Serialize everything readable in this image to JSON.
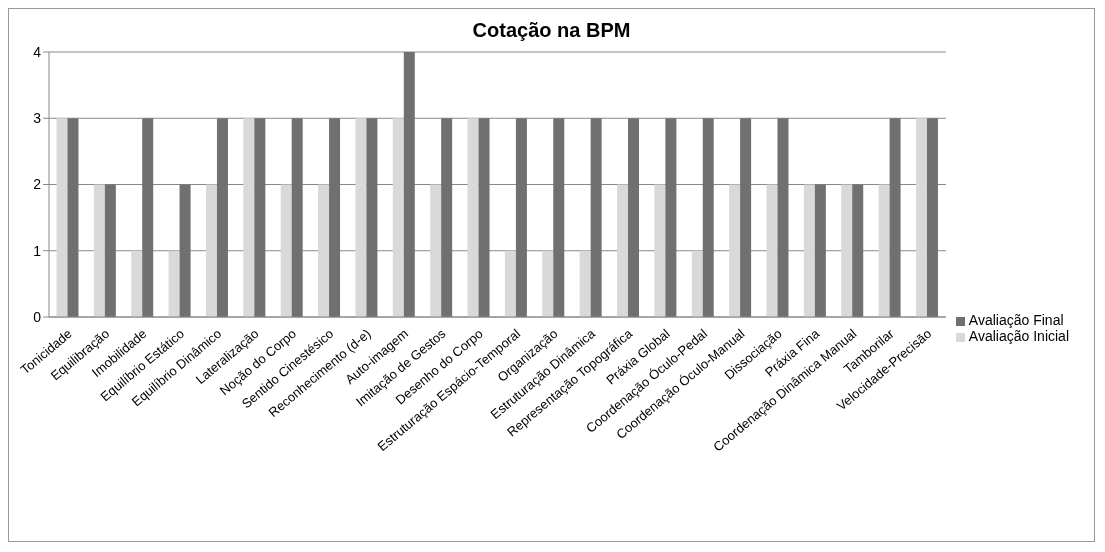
{
  "chart_data": {
    "type": "bar",
    "title": "Cotação na BPM",
    "categories": [
      "Tonicidade",
      "Equilibração",
      "Imobilidade",
      "Equilíbrio Estático",
      "Equilíbrio Dinâmico",
      "Lateralização",
      "Noção do Corpo",
      "Sentido Cinestésico",
      "Reconhecimento (d-e)",
      "Auto-imagem",
      "Imitação de Gestos",
      "Desenho do Corpo",
      "Estruturação Espácio-Temporal",
      "Organização",
      "Estruturação Dinâmica",
      "Representação Topográfica",
      "Práxia Global",
      "Coordenação Óculo-Pedal",
      "Coordenação Óculo-Manual",
      "Dissociação",
      "Práxia Fina",
      "Coordenação Dinâmica Manual",
      "Tamborilar",
      "Velocidade-Precisão"
    ],
    "series": [
      {
        "name": "Avaliação Inicial",
        "color": "#d9d9d9",
        "values": [
          3,
          2,
          1,
          1,
          2,
          3,
          2,
          2,
          3,
          3,
          2,
          3,
          1,
          1,
          1,
          2,
          2,
          1,
          2,
          2,
          2,
          2,
          2,
          3
        ]
      },
      {
        "name": "Avaliação Final",
        "color": "#707070",
        "values": [
          3,
          2,
          3,
          2,
          3,
          3,
          3,
          3,
          3,
          4,
          3,
          3,
          3,
          3,
          3,
          3,
          3,
          3,
          3,
          3,
          2,
          2,
          3,
          3
        ]
      }
    ],
    "ylim": [
      0,
      4
    ],
    "yticks": [
      0,
      1,
      2,
      3,
      4
    ],
    "grid": "y",
    "legend": "right"
  }
}
